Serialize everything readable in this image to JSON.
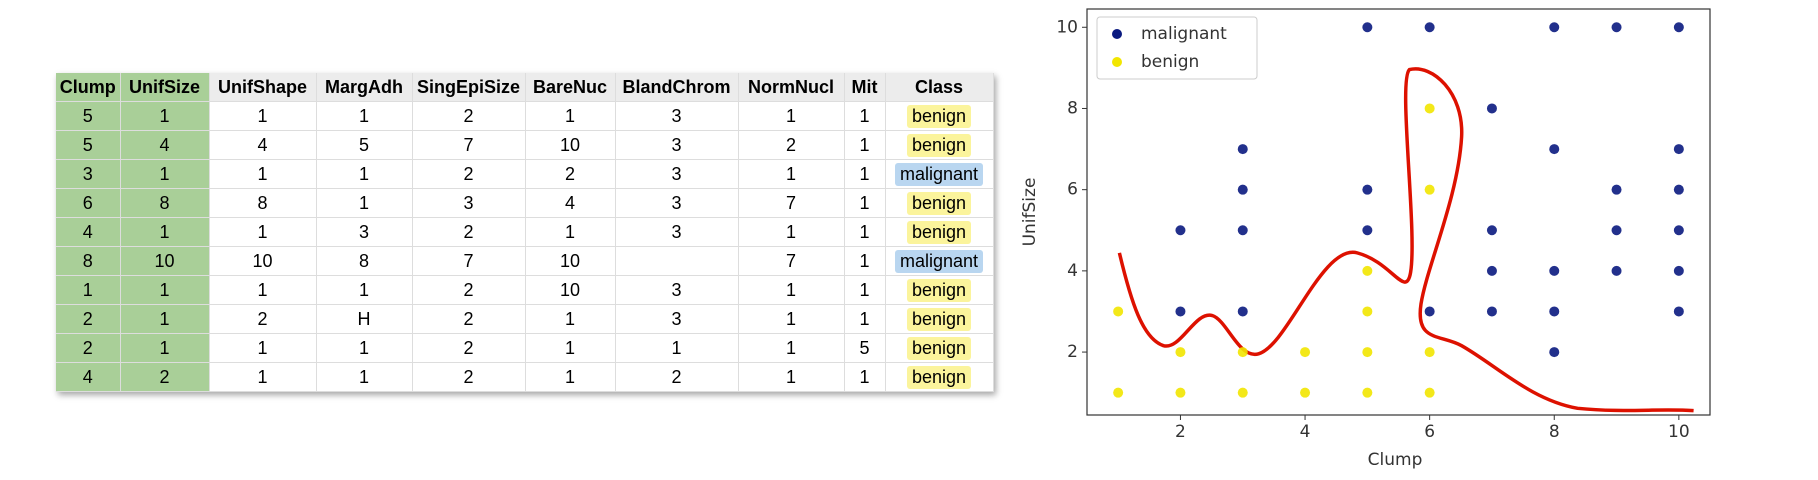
{
  "table": {
    "header": [
      "Clump",
      "UnifSize",
      "UnifShape",
      "MargAdh",
      "SingEpiSize",
      "BareNuc",
      "BlandChrom",
      "NormNucl",
      "Mit",
      "Class"
    ],
    "rows": [
      [
        "5",
        "1",
        "1",
        "1",
        "2",
        "1",
        "3",
        "1",
        "1",
        "benign"
      ],
      [
        "5",
        "4",
        "4",
        "5",
        "7",
        "10",
        "3",
        "2",
        "1",
        "benign"
      ],
      [
        "3",
        "1",
        "1",
        "1",
        "2",
        "2",
        "3",
        "1",
        "1",
        "malignant"
      ],
      [
        "6",
        "8",
        "8",
        "1",
        "3",
        "4",
        "3",
        "7",
        "1",
        "benign"
      ],
      [
        "4",
        "1",
        "1",
        "3",
        "2",
        "1",
        "3",
        "1",
        "1",
        "benign"
      ],
      [
        "8",
        "10",
        "10",
        "8",
        "7",
        "10",
        null,
        "7",
        "1",
        "malignant"
      ],
      [
        "1",
        "1",
        "1",
        "1",
        "2",
        "10",
        "3",
        "1",
        "1",
        "benign"
      ],
      [
        "2",
        "1",
        "2",
        "H",
        "2",
        "1",
        "3",
        "1",
        "1",
        "benign"
      ],
      [
        "2",
        "1",
        "1",
        "1",
        "2",
        "1",
        "1",
        "1",
        "5",
        "benign"
      ],
      [
        "4",
        "2",
        "1",
        "1",
        "2",
        "1",
        "2",
        "1",
        "1",
        "benign"
      ]
    ]
  },
  "chart_data": {
    "type": "scatter",
    "x_label": "Clump",
    "y_label": "UnifSize",
    "xlim": [
      0.5,
      10.5
    ],
    "ylim": [
      0.45,
      10.45
    ],
    "xticks": [
      2,
      4,
      6,
      8,
      10
    ],
    "yticks": [
      2,
      4,
      6,
      8,
      10
    ],
    "legend": "upper left",
    "series": [
      {
        "name": "malignant",
        "color": "#0a1a80",
        "x": [
          5,
          6,
          8,
          9,
          10,
          7,
          3,
          8,
          10,
          3,
          5,
          9,
          10,
          2,
          3,
          5,
          7,
          9,
          10,
          7,
          8,
          9,
          10,
          2,
          3,
          6,
          7,
          8,
          10,
          8
        ],
        "y": [
          10,
          10,
          10,
          10,
          10,
          8,
          7,
          7,
          7,
          6,
          6,
          6,
          6,
          5,
          5,
          5,
          5,
          5,
          5,
          4,
          4,
          4,
          4,
          3,
          3,
          3,
          3,
          3,
          3,
          2
        ]
      },
      {
        "name": "benign",
        "color": "#f2e600",
        "x": [
          6,
          6,
          5,
          1,
          5,
          2,
          3,
          4,
          5,
          6,
          1,
          2,
          3,
          4,
          5,
          6
        ],
        "y": [
          8,
          6,
          4,
          3,
          3,
          2,
          2,
          2,
          2,
          2,
          1,
          1,
          1,
          1,
          1,
          1
        ]
      }
    ]
  }
}
